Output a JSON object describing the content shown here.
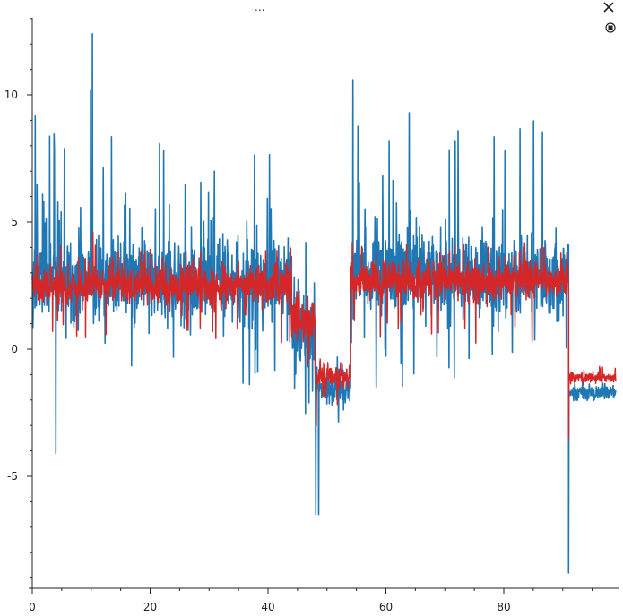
{
  "toolbar": {
    "menu_label": "...",
    "close_icon": "close-icon",
    "pin_icon": "pin-icon"
  },
  "colors": {
    "series_blue": "#1f77b4",
    "series_red": "#d62728",
    "axis": "#222222"
  },
  "chart_data": {
    "type": "line",
    "title": "",
    "xlabel": "",
    "ylabel": "",
    "xlim": [
      0,
      99
    ],
    "ylim": [
      -9.3,
      13
    ],
    "x_ticks": [
      0,
      20,
      40,
      60,
      80
    ],
    "x_tick_labels": [
      "0",
      "20",
      "40",
      "60",
      "80"
    ],
    "y_ticks": [
      -5,
      0,
      5,
      10
    ],
    "y_tick_labels": [
      "-5",
      "0",
      "5",
      "10"
    ],
    "grid": false,
    "legend": "none",
    "series": [
      {
        "color": "#1f77b4",
        "segments": [
          {
            "x0": 0,
            "x1": 44,
            "mean": 2.7,
            "noise": 1.3,
            "spike_up": 5.8,
            "spike_down": 4.2
          },
          {
            "x0": 44,
            "x1": 48,
            "mean": 0.6,
            "noise": 1.4,
            "spike_up": 2.5,
            "spike_down": 3.5
          },
          {
            "x0": 48,
            "x1": 54,
            "mean": -1.5,
            "noise": 0.6,
            "spike_up": 1.5,
            "spike_down": 1.5
          },
          {
            "x0": 54,
            "x1": 91,
            "mean": 2.9,
            "noise": 1.3,
            "spike_up": 6.5,
            "spike_down": 4.5
          },
          {
            "x0": 91,
            "x1": 99,
            "mean": -1.7,
            "noise": 0.25,
            "spike_up": 0.3,
            "spike_down": 0.3
          }
        ],
        "peaks": [
          {
            "x": 10.2,
            "y": 12.4
          },
          {
            "x": 9.9,
            "y": 10.2
          },
          {
            "x": 0.5,
            "y": 9.2
          },
          {
            "x": 54.4,
            "y": 10.6
          },
          {
            "x": 48.1,
            "y": -6.5
          },
          {
            "x": 48.6,
            "y": -6.5
          },
          {
            "x": 91.0,
            "y": -8.8
          },
          {
            "x": 4.0,
            "y": -4.1
          }
        ]
      },
      {
        "color": "#d62728",
        "segments": [
          {
            "x0": 0,
            "x1": 44,
            "mean": 2.5,
            "noise": 0.6,
            "spike_up": 1.6,
            "spike_down": 2.5
          },
          {
            "x0": 44,
            "x1": 48,
            "mean": 1.2,
            "noise": 0.8,
            "spike_up": 1.0,
            "spike_down": 2.0
          },
          {
            "x0": 48,
            "x1": 54,
            "mean": -1.1,
            "noise": 0.35,
            "spike_up": 0.8,
            "spike_down": 1.2
          },
          {
            "x0": 54,
            "x1": 91,
            "mean": 2.7,
            "noise": 0.6,
            "spike_up": 1.5,
            "spike_down": 2.5
          },
          {
            "x0": 91,
            "x1": 99,
            "mean": -1.1,
            "noise": 0.15,
            "spike_up": 0.5,
            "spike_down": 0.2
          }
        ],
        "peaks": [
          {
            "x": 10.3,
            "y": 4.6
          },
          {
            "x": 54.3,
            "y": 4.2
          },
          {
            "x": 48.2,
            "y": -3.0
          },
          {
            "x": 91.0,
            "y": -3.5
          }
        ]
      }
    ]
  }
}
